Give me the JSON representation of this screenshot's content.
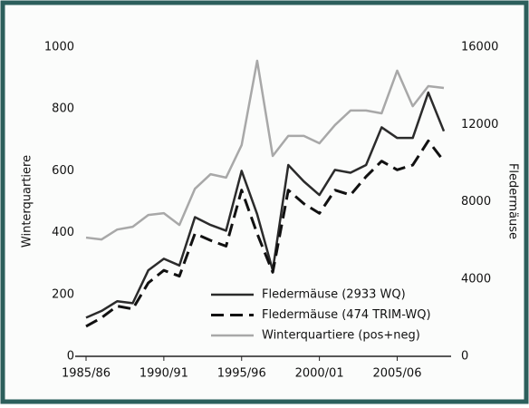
{
  "chart_data": {
    "type": "line",
    "ylabel": "Winterquartiere",
    "y2label": "Fledermäuse",
    "categories": [
      "1985/86",
      null,
      null,
      null,
      null,
      "1990/91",
      null,
      null,
      null,
      null,
      "1995/96",
      null,
      null,
      null,
      null,
      "2000/01",
      null,
      null,
      null,
      null,
      "2005/06",
      null,
      null,
      null
    ],
    "series": [
      {
        "name": "Fledermäuse (2933 WQ)",
        "color": "#2b2b2b",
        "dashed": false,
        "axis": "y2",
        "values": [
          2000,
          2350,
          2850,
          2750,
          4450,
          5050,
          4700,
          7200,
          6800,
          6500,
          9600,
          7350,
          4450,
          9900,
          9050,
          8350,
          9650,
          9500,
          9900,
          11850,
          11300,
          11300,
          13650,
          11650
        ]
      },
      {
        "name": "Fledermäuse (474 TRIM-WQ)",
        "color": "#111111",
        "dashed": true,
        "axis": "y2",
        "values": [
          1550,
          2000,
          2600,
          2450,
          3800,
          4450,
          4150,
          6350,
          6000,
          5700,
          8600,
          6350,
          4350,
          8600,
          7900,
          7400,
          8600,
          8350,
          9300,
          10100,
          9650,
          9900,
          11150,
          10100
        ]
      },
      {
        "name": "Winterquartiere (pos+neg)",
        "color": "#a8a8a8",
        "dashed": false,
        "values": [
          384,
          378,
          410,
          419,
          457,
          463,
          425,
          542,
          589,
          578,
          683,
          956,
          648,
          713,
          713,
          689,
          748,
          795,
          795,
          786,
          924,
          809,
          874,
          868
        ]
      }
    ],
    "ylim": [
      0,
      1000
    ],
    "yticks": [
      0,
      200,
      400,
      600,
      800,
      1000
    ],
    "y2lim": [
      0,
      16000
    ],
    "y2ticks": [
      0,
      4000,
      8000,
      12000,
      16000
    ],
    "legend": "lower right"
  }
}
